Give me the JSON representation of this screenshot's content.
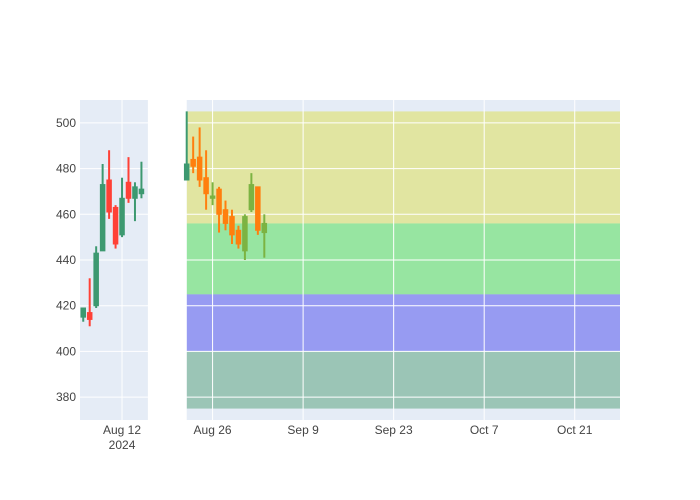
{
  "chart_data": {
    "type": "candlestick",
    "title": "",
    "xlabel": "",
    "ylabel": "",
    "ylim": [
      370,
      510
    ],
    "xlim": [
      "2024-08-05T12:00",
      "2024-10-28"
    ],
    "grid": true,
    "legend": "none",
    "x_ticks": [
      {
        "date": "2024-08-12",
        "label": "Aug 12",
        "sublabel": "2024"
      },
      {
        "date": "2024-08-26",
        "label": "Aug 26"
      },
      {
        "date": "2024-09-09",
        "label": "Sep 9"
      },
      {
        "date": "2024-09-23",
        "label": "Sep 23"
      },
      {
        "date": "2024-10-07",
        "label": "Oct 7"
      },
      {
        "date": "2024-10-21",
        "label": "Oct 21"
      }
    ],
    "y_ticks": [
      380,
      400,
      420,
      440,
      460,
      480,
      500
    ],
    "background_regions": [
      {
        "x0": "2024-08-22",
        "x1": "2024-10-28",
        "y0": 375,
        "y1": 400,
        "color": "#2e8b57",
        "opacity": 0.4
      },
      {
        "x0": "2024-08-22",
        "x1": "2024-10-28",
        "y0": 400,
        "y1": 425,
        "color": "#2222ee",
        "opacity": 0.4
      },
      {
        "x0": "2024-08-22",
        "x1": "2024-10-28",
        "y0": 425,
        "y1": 456,
        "color": "#22dd22",
        "opacity": 0.4
      },
      {
        "x0": "2024-08-22",
        "x1": "2024-10-28",
        "y0": 456,
        "y1": 505,
        "color": "#dddd22",
        "opacity": 0.4
      }
    ],
    "highlight_band": {
      "x0": "2024-08-16",
      "x1": "2024-08-22",
      "color": "#ffffff"
    },
    "series": [
      {
        "increasing_color": "#3d9970",
        "decreasing_color": "#ff4136",
        "data": [
          {
            "date": "2024-08-06",
            "open": 415,
            "high": 419,
            "low": 413,
            "close": 419
          },
          {
            "date": "2024-08-07",
            "open": 417,
            "high": 432,
            "low": 411,
            "close": 414
          },
          {
            "date": "2024-08-08",
            "open": 420,
            "high": 446,
            "low": 419,
            "close": 443
          },
          {
            "date": "2024-08-09",
            "open": 444,
            "high": 482,
            "low": 444,
            "close": 473
          },
          {
            "date": "2024-08-10",
            "open": 475,
            "high": 488,
            "low": 458,
            "close": 461
          },
          {
            "date": "2024-08-11",
            "open": 463,
            "high": 464,
            "low": 445,
            "close": 447
          },
          {
            "date": "2024-08-12",
            "open": 451,
            "high": 476,
            "low": 450,
            "close": 467
          },
          {
            "date": "2024-08-13",
            "open": 474,
            "high": 485,
            "low": 465,
            "close": 467
          },
          {
            "date": "2024-08-14",
            "open": 467,
            "high": 474,
            "low": 457,
            "close": 472
          },
          {
            "date": "2024-08-15",
            "open": 469,
            "high": 483,
            "low": 467,
            "close": 471
          }
        ]
      },
      {
        "increasing_color": "#3d9970",
        "decreasing_color": "#ff4136",
        "data": [
          {
            "date": "2024-08-22",
            "open": 475,
            "high": 505,
            "low": 475,
            "close": 482
          }
        ]
      },
      {
        "increasing_color": "#7cb342",
        "decreasing_color": "#ff7f0e",
        "data": [
          {
            "date": "2024-08-23",
            "open": 484,
            "high": 494,
            "low": 478,
            "close": 481
          },
          {
            "date": "2024-08-24",
            "open": 485,
            "high": 498,
            "low": 472,
            "close": 475
          },
          {
            "date": "2024-08-25",
            "open": 476,
            "high": 488,
            "low": 462,
            "close": 469
          },
          {
            "date": "2024-08-26",
            "open": 467,
            "high": 474,
            "low": 464,
            "close": 468
          },
          {
            "date": "2024-08-27",
            "open": 471,
            "high": 472,
            "low": 452,
            "close": 460
          },
          {
            "date": "2024-08-28",
            "open": 462,
            "high": 466,
            "low": 453,
            "close": 456
          },
          {
            "date": "2024-08-29",
            "open": 459,
            "high": 462,
            "low": 447,
            "close": 451
          },
          {
            "date": "2024-08-30",
            "open": 453,
            "high": 455,
            "low": 445,
            "close": 447
          },
          {
            "date": "2024-08-31",
            "open": 444,
            "high": 460,
            "low": 440,
            "close": 459
          },
          {
            "date": "2024-09-01",
            "open": 462,
            "high": 478,
            "low": 461,
            "close": 473
          },
          {
            "date": "2024-09-02",
            "open": 472,
            "high": 472,
            "low": 451,
            "close": 453
          },
          {
            "date": "2024-09-03",
            "open": 452,
            "high": 460,
            "low": 441,
            "close": 456
          }
        ]
      }
    ]
  }
}
